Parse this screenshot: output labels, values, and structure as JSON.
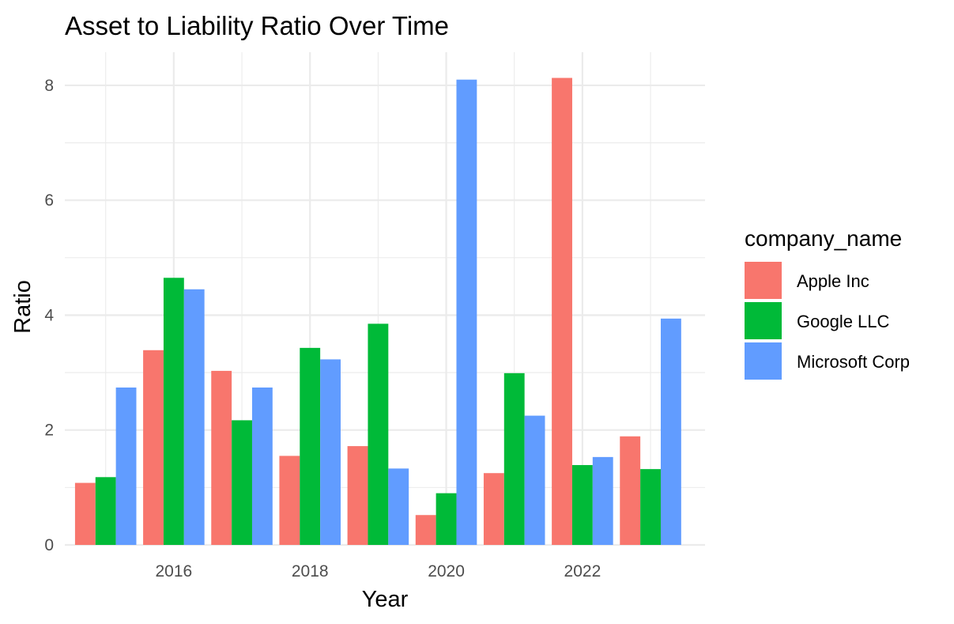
{
  "chart_data": {
    "type": "bar",
    "title": "Asset to Liability Ratio Over Time",
    "xlabel": "Year",
    "ylabel": "Ratio",
    "x": [
      2015,
      2016,
      2017,
      2018,
      2019,
      2020,
      2021,
      2022,
      2023
    ],
    "x_ticks": [
      2016,
      2018,
      2020,
      2022
    ],
    "y_ticks": [
      0,
      2,
      4,
      6,
      8
    ],
    "ylim": [
      0,
      8.55
    ],
    "xlim": [
      2014.4,
      2023.8
    ],
    "grid": true,
    "legend": {
      "title": "company_name",
      "position": "right"
    },
    "series": [
      {
        "name": "Apple Inc",
        "color": "#F8766D",
        "values": [
          1.08,
          3.39,
          3.03,
          1.55,
          1.72,
          0.52,
          1.25,
          8.13,
          1.89
        ]
      },
      {
        "name": "Google LLC",
        "color": "#00BA38",
        "values": [
          1.18,
          4.65,
          2.17,
          3.43,
          3.85,
          0.9,
          2.99,
          1.39,
          1.32
        ]
      },
      {
        "name": "Microsoft Corp",
        "color": "#619CFF",
        "values": [
          2.74,
          4.45,
          2.74,
          3.23,
          1.33,
          8.1,
          2.25,
          1.53,
          3.94
        ]
      }
    ]
  }
}
